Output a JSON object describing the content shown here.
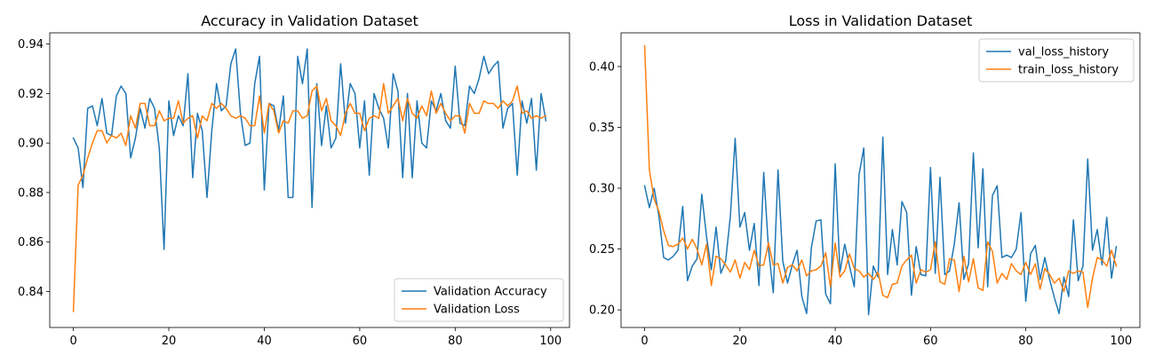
{
  "chart_data": [
    {
      "type": "line",
      "title": "Accuracy in Validation Dataset",
      "xlim": [
        -4.95,
        103.95
      ],
      "ylim": [
        0.8255,
        0.9445
      ],
      "xticks": [
        0,
        20,
        40,
        60,
        80,
        100
      ],
      "yticks": [
        0.84,
        0.86,
        0.88,
        0.9,
        0.92,
        0.94
      ],
      "ytick_labels": [
        "0.84",
        "0.86",
        "0.88",
        "0.90",
        "0.92",
        "0.94"
      ],
      "legend_position": "lower-right",
      "series": [
        {
          "name": "Validation Accuracy",
          "color": "#1f77b4",
          "values": [
            0.902,
            0.898,
            0.882,
            0.914,
            0.915,
            0.907,
            0.918,
            0.904,
            0.903,
            0.919,
            0.923,
            0.92,
            0.894,
            0.902,
            0.914,
            0.906,
            0.918,
            0.914,
            0.898,
            0.857,
            0.917,
            0.903,
            0.911,
            0.907,
            0.928,
            0.886,
            0.912,
            0.905,
            0.878,
            0.905,
            0.924,
            0.913,
            0.915,
            0.932,
            0.938,
            0.912,
            0.899,
            0.9,
            0.924,
            0.935,
            0.881,
            0.916,
            0.915,
            0.905,
            0.919,
            0.878,
            0.878,
            0.935,
            0.924,
            0.938,
            0.874,
            0.924,
            0.899,
            0.915,
            0.898,
            0.902,
            0.932,
            0.908,
            0.924,
            0.92,
            0.898,
            0.917,
            0.887,
            0.92,
            0.914,
            0.91,
            0.898,
            0.928,
            0.921,
            0.886,
            0.92,
            0.886,
            0.917,
            0.9,
            0.898,
            0.917,
            0.913,
            0.92,
            0.909,
            0.906,
            0.931,
            0.908,
            0.907,
            0.923,
            0.92,
            0.926,
            0.935,
            0.928,
            0.931,
            0.933,
            0.906,
            0.914,
            0.916,
            0.887,
            0.917,
            0.908,
            0.918,
            0.889,
            0.92,
            0.909
          ]
        },
        {
          "name": "Validation Loss",
          "color": "#ff7f0e",
          "values": [
            0.832,
            0.883,
            0.887,
            0.894,
            0.9,
            0.905,
            0.905,
            0.9,
            0.903,
            0.902,
            0.904,
            0.899,
            0.911,
            0.906,
            0.916,
            0.916,
            0.907,
            0.907,
            0.913,
            0.909,
            0.91,
            0.91,
            0.917,
            0.908,
            0.91,
            0.911,
            0.902,
            0.911,
            0.909,
            0.916,
            0.914,
            0.916,
            0.914,
            0.911,
            0.91,
            0.911,
            0.91,
            0.907,
            0.907,
            0.919,
            0.904,
            0.916,
            0.913,
            0.904,
            0.909,
            0.908,
            0.913,
            0.913,
            0.91,
            0.911,
            0.921,
            0.923,
            0.913,
            0.918,
            0.909,
            0.907,
            0.903,
            0.912,
            0.916,
            0.912,
            0.912,
            0.905,
            0.91,
            0.911,
            0.91,
            0.924,
            0.912,
            0.915,
            0.918,
            0.909,
            0.918,
            0.912,
            0.91,
            0.915,
            0.911,
            0.921,
            0.912,
            0.916,
            0.912,
            0.909,
            0.911,
            0.911,
            0.904,
            0.916,
            0.912,
            0.912,
            0.917,
            0.916,
            0.916,
            0.914,
            0.917,
            0.915,
            0.917,
            0.923,
            0.912,
            0.913,
            0.91,
            0.911,
            0.91,
            0.911
          ]
        }
      ]
    },
    {
      "type": "line",
      "title": "Loss in Validation Dataset",
      "xlim": [
        -4.95,
        103.95
      ],
      "ylim": [
        0.1855,
        0.4277
      ],
      "xticks": [
        0,
        20,
        40,
        60,
        80,
        100
      ],
      "yticks": [
        0.2,
        0.25,
        0.3,
        0.35,
        0.4
      ],
      "ytick_labels": [
        "0.20",
        "0.25",
        "0.30",
        "0.35",
        "0.40"
      ],
      "legend_position": "upper-right",
      "series": [
        {
          "name": "val_loss_history",
          "color": "#1f77b4",
          "values": [
            0.302,
            0.284,
            0.3,
            0.277,
            0.243,
            0.241,
            0.244,
            0.249,
            0.285,
            0.224,
            0.236,
            0.242,
            0.295,
            0.26,
            0.233,
            0.268,
            0.23,
            0.24,
            0.277,
            0.341,
            0.268,
            0.28,
            0.249,
            0.271,
            0.22,
            0.313,
            0.25,
            0.214,
            0.315,
            0.24,
            0.222,
            0.237,
            0.249,
            0.211,
            0.197,
            0.251,
            0.273,
            0.274,
            0.213,
            0.205,
            0.32,
            0.231,
            0.254,
            0.236,
            0.219,
            0.311,
            0.333,
            0.196,
            0.236,
            0.227,
            0.342,
            0.229,
            0.266,
            0.237,
            0.289,
            0.28,
            0.212,
            0.252,
            0.229,
            0.228,
            0.317,
            0.23,
            0.309,
            0.229,
            0.232,
            0.254,
            0.288,
            0.225,
            0.238,
            0.329,
            0.251,
            0.316,
            0.219,
            0.294,
            0.302,
            0.243,
            0.245,
            0.243,
            0.25,
            0.28,
            0.207,
            0.246,
            0.253,
            0.225,
            0.243,
            0.225,
            0.21,
            0.197,
            0.227,
            0.211,
            0.274,
            0.224,
            0.236,
            0.324,
            0.249,
            0.266,
            0.237,
            0.276,
            0.226,
            0.252
          ]
        },
        {
          "name": "train_loss_history",
          "color": "#ff7f0e",
          "values": [
            0.417,
            0.315,
            0.291,
            0.281,
            0.265,
            0.253,
            0.252,
            0.254,
            0.259,
            0.25,
            0.258,
            0.25,
            0.237,
            0.254,
            0.22,
            0.244,
            0.242,
            0.237,
            0.231,
            0.241,
            0.226,
            0.239,
            0.233,
            0.249,
            0.236,
            0.237,
            0.255,
            0.237,
            0.238,
            0.222,
            0.235,
            0.237,
            0.232,
            0.241,
            0.228,
            0.232,
            0.233,
            0.236,
            0.247,
            0.219,
            0.255,
            0.227,
            0.232,
            0.246,
            0.234,
            0.232,
            0.227,
            0.23,
            0.225,
            0.231,
            0.212,
            0.21,
            0.221,
            0.222,
            0.236,
            0.241,
            0.245,
            0.222,
            0.233,
            0.231,
            0.233,
            0.256,
            0.223,
            0.221,
            0.242,
            0.241,
            0.215,
            0.244,
            0.223,
            0.242,
            0.218,
            0.216,
            0.256,
            0.248,
            0.222,
            0.23,
            0.225,
            0.238,
            0.232,
            0.229,
            0.239,
            0.229,
            0.238,
            0.217,
            0.234,
            0.229,
            0.222,
            0.226,
            0.215,
            0.232,
            0.23,
            0.232,
            0.231,
            0.202,
            0.226,
            0.243,
            0.241,
            0.236,
            0.249,
            0.236
          ]
        }
      ]
    }
  ]
}
